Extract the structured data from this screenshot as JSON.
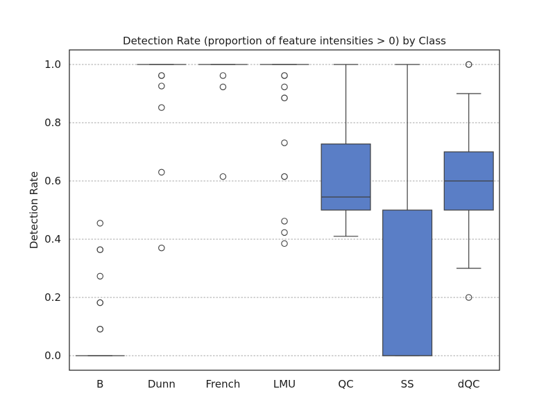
{
  "chart_data": {
    "type": "box",
    "title": "Detection Rate (proportion of feature intensities > 0) by Class",
    "xlabel": "",
    "ylabel": "Detection Rate",
    "ylim": [
      -0.05,
      1.05
    ],
    "yticks": [
      "0.0",
      "0.2",
      "0.4",
      "0.6",
      "0.8",
      "1.0"
    ],
    "grid": "horizontal dashed",
    "box_color": "#5a7ec6",
    "categories": [
      "B",
      "Dunn",
      "French",
      "LMU",
      "QC",
      "SS",
      "dQC"
    ],
    "boxes": [
      {
        "category": "B",
        "whisker_low": 0.0,
        "q1": 0.0,
        "median": 0.0,
        "q3": 0.0,
        "whisker_high": 0.0,
        "outliers": [
          0.455,
          0.364,
          0.364,
          0.273,
          0.182,
          0.182,
          0.091,
          0.091
        ]
      },
      {
        "category": "Dunn",
        "whisker_low": 1.0,
        "q1": 1.0,
        "median": 1.0,
        "q3": 1.0,
        "whisker_high": 1.0,
        "outliers": [
          0.962,
          0.962,
          0.926,
          0.852,
          0.63,
          0.37
        ]
      },
      {
        "category": "French",
        "whisker_low": 1.0,
        "q1": 1.0,
        "median": 1.0,
        "q3": 1.0,
        "whisker_high": 1.0,
        "outliers": [
          0.962,
          0.923,
          0.615
        ]
      },
      {
        "category": "LMU",
        "whisker_low": 1.0,
        "q1": 1.0,
        "median": 1.0,
        "q3": 1.0,
        "whisker_high": 1.0,
        "outliers": [
          0.962,
          0.962,
          0.923,
          0.885,
          0.885,
          0.731,
          0.615,
          0.615,
          0.462,
          0.423,
          0.385
        ]
      },
      {
        "category": "QC",
        "whisker_low": 0.41,
        "q1": 0.5,
        "median": 0.545,
        "q3": 0.727,
        "whisker_high": 1.0,
        "outliers": []
      },
      {
        "category": "SS",
        "whisker_low": 0.0,
        "q1": 0.0,
        "median": 0.0,
        "q3": 0.5,
        "whisker_high": 1.0,
        "outliers": []
      },
      {
        "category": "dQC",
        "whisker_low": 0.3,
        "q1": 0.5,
        "median": 0.6,
        "q3": 0.7,
        "whisker_high": 0.9,
        "outliers": [
          1.0,
          1.0,
          0.2
        ]
      }
    ]
  }
}
